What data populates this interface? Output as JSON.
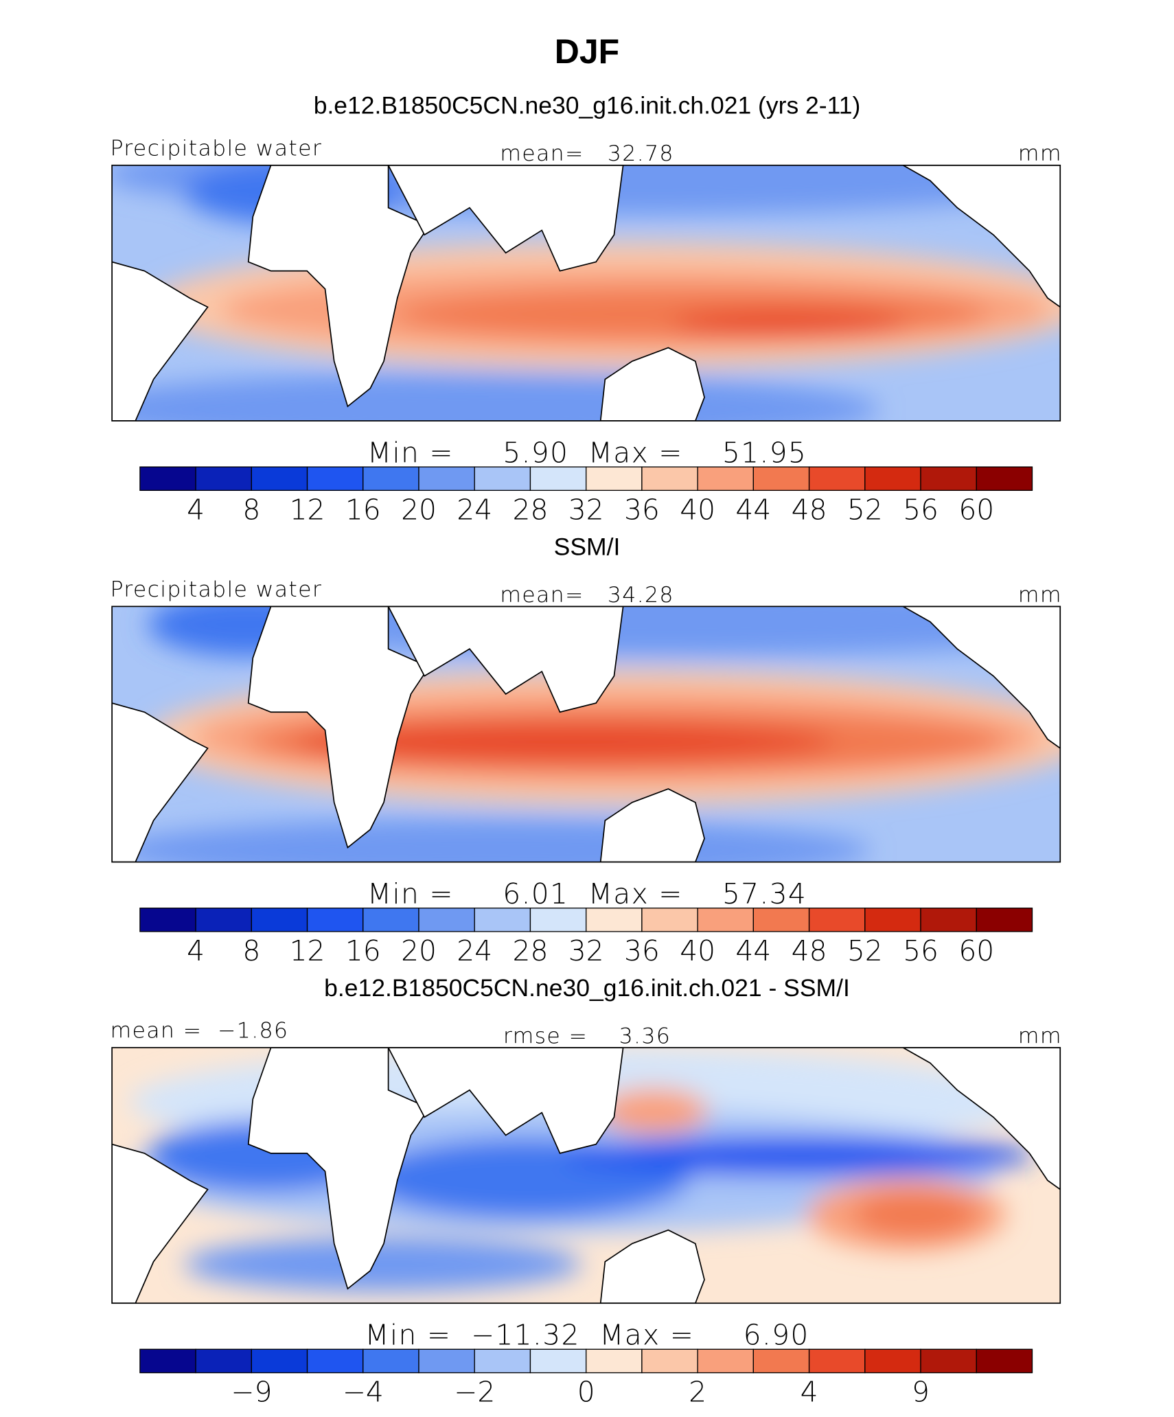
{
  "title": "DJF",
  "panels": [
    {
      "subtitle": "b.e12.B1850C5CN.ne30_g16.init.ch.021 (yrs 2-11)",
      "left_label": "Precipitable water",
      "center_label": "mean=   32.78",
      "right_label": "mm",
      "stats": "Min =     5.90  Max =    51.95",
      "colorbar": {
        "colors": [
          "#06068f",
          "#0a22b8",
          "#0a3ad9",
          "#1f55f0",
          "#3f77f0",
          "#6f99f2",
          "#a9c5f7",
          "#d4e5fa",
          "#fde7d4",
          "#fbc7a9",
          "#f9a07c",
          "#f27950",
          "#e84a2a",
          "#d42a10",
          "#b0180a",
          "#8b0000"
        ],
        "labels": [
          4,
          8,
          12,
          16,
          20,
          24,
          28,
          32,
          36,
          40,
          44,
          48,
          52,
          56,
          60
        ]
      }
    },
    {
      "subtitle": "SSM/I",
      "left_label": "Precipitable water",
      "center_label": "mean=   34.28",
      "right_label": "mm",
      "stats": "Min =     6.01  Max =    57.34",
      "colorbar": {
        "colors": [
          "#06068f",
          "#0a22b8",
          "#0a3ad9",
          "#1f55f0",
          "#3f77f0",
          "#6f99f2",
          "#a9c5f7",
          "#d4e5fa",
          "#fde7d4",
          "#fbc7a9",
          "#f9a07c",
          "#f27950",
          "#e84a2a",
          "#d42a10",
          "#b0180a",
          "#8b0000"
        ],
        "labels": [
          4,
          8,
          12,
          16,
          20,
          24,
          28,
          32,
          36,
          40,
          44,
          48,
          52,
          56,
          60
        ]
      }
    },
    {
      "subtitle": "b.e12.B1850C5CN.ne30_g16.init.ch.021 - SSM/I",
      "left_label": "mean =  −1.86",
      "center_label": "rmse =    3.36",
      "right_label": "mm",
      "stats": "Min =  −11.32  Max =     6.90",
      "colorbar": {
        "colors": [
          "#06068f",
          "#0a22b8",
          "#0a3ad9",
          "#1f55f0",
          "#3f77f0",
          "#6f99f2",
          "#a9c5f7",
          "#d4e5fa",
          "#fde7d4",
          "#fbc7a9",
          "#f9a07c",
          "#f27950",
          "#e84a2a",
          "#d42a10",
          "#b0180a",
          "#8b0000"
        ],
        "labels": [
          null,
          "−9",
          null,
          "−4",
          null,
          "−2",
          null,
          "0",
          null,
          "2",
          null,
          "4",
          null,
          "9",
          null
        ]
      }
    }
  ]
}
